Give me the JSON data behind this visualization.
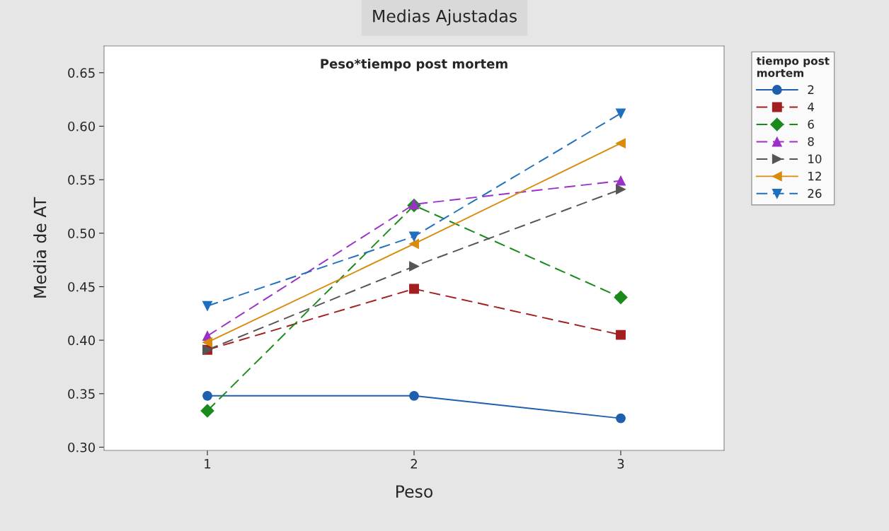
{
  "chart_data": {
    "type": "line",
    "title": "Medias Ajustadas",
    "subtitle": "Peso*tiempo post mortem",
    "xlabel": "Peso",
    "ylabel": "Media de AT",
    "legend_title": "tiempo post mortem",
    "legend": "right",
    "grid": false,
    "x": [
      1,
      2,
      3
    ],
    "xlim": [
      0.5,
      3.5
    ],
    "xticks": [
      1,
      2,
      3
    ],
    "ylim": [
      0.297,
      0.675
    ],
    "yticks": [
      {
        "value": 0.3,
        "label": "0.30"
      },
      {
        "value": 0.35,
        "label": "0.35"
      },
      {
        "value": 0.4,
        "label": "0.40"
      },
      {
        "value": 0.45,
        "label": "0.45"
      },
      {
        "value": 0.5,
        "label": "0.50"
      },
      {
        "value": 0.55,
        "label": "0.55"
      },
      {
        "value": 0.6,
        "label": "0.60"
      },
      {
        "value": 0.65,
        "label": "0.65"
      }
    ],
    "series": [
      {
        "name": "2",
        "color": "#1f5fae",
        "marker": "circle",
        "line_style": "solid",
        "values": [
          0.348,
          0.348,
          0.327
        ]
      },
      {
        "name": "4",
        "color": "#a31f1f",
        "marker": "square",
        "line_style": "dashed",
        "values": [
          0.391,
          0.448,
          0.405
        ]
      },
      {
        "name": "6",
        "color": "#1a8a1a",
        "marker": "diamond",
        "line_style": "dashed",
        "values": [
          0.334,
          0.526,
          0.44
        ]
      },
      {
        "name": "8",
        "color": "#9b30c8",
        "marker": "triangle",
        "line_style": "dashed",
        "values": [
          0.404,
          0.527,
          0.549
        ]
      },
      {
        "name": "10",
        "color": "#555555",
        "marker": "triangle-right",
        "line_style": "dashed",
        "values": [
          0.391,
          0.469,
          0.541
        ]
      },
      {
        "name": "12",
        "color": "#d98b0b",
        "marker": "triangle-left",
        "line_style": "solid",
        "values": [
          0.398,
          0.49,
          0.584
        ]
      },
      {
        "name": "26",
        "color": "#1f6fbf",
        "marker": "triangle-down",
        "line_style": "dashed",
        "values": [
          0.432,
          0.497,
          0.612
        ]
      }
    ]
  }
}
